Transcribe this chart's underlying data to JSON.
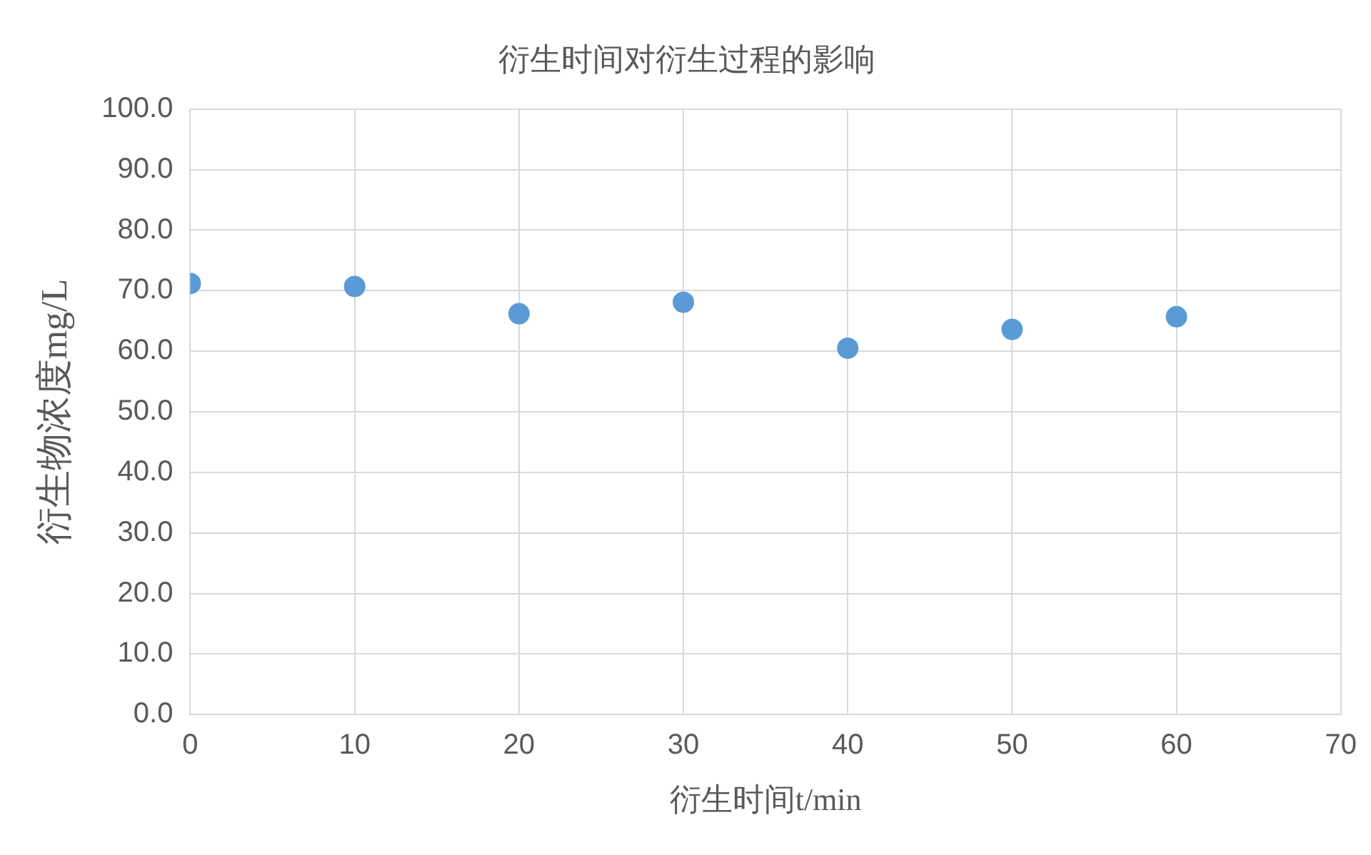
{
  "chart_data": {
    "type": "scatter",
    "title": "衍生时间对衍生过程的影响",
    "xlabel": "衍生时间t/min",
    "ylabel": "衍生物浓度mg/L",
    "x": [
      0,
      10,
      20,
      30,
      40,
      50,
      60
    ],
    "series": [
      {
        "color": "#5b9bd5",
        "values": [
          71.2,
          70.7,
          66.2,
          68.1,
          60.5,
          63.6,
          65.7
        ]
      }
    ],
    "xlim": [
      0,
      70
    ],
    "xticks": [
      0,
      10,
      20,
      30,
      40,
      50,
      60,
      70
    ],
    "ylim": [
      0,
      100
    ],
    "yticks": [
      {
        "value": 0,
        "label": "0.0"
      },
      {
        "value": 10,
        "label": "10.0"
      },
      {
        "value": 20,
        "label": "20.0"
      },
      {
        "value": 30,
        "label": "30.0"
      },
      {
        "value": 40,
        "label": "40.0"
      },
      {
        "value": 50,
        "label": "50.0"
      },
      {
        "value": 60,
        "label": "60.0"
      },
      {
        "value": 70,
        "label": "70.0"
      },
      {
        "value": 80,
        "label": "80.0"
      },
      {
        "value": 90,
        "label": "90.0"
      },
      {
        "value": 100,
        "label": "100.0"
      }
    ],
    "grid": true,
    "marker": "circle",
    "legend": false
  }
}
